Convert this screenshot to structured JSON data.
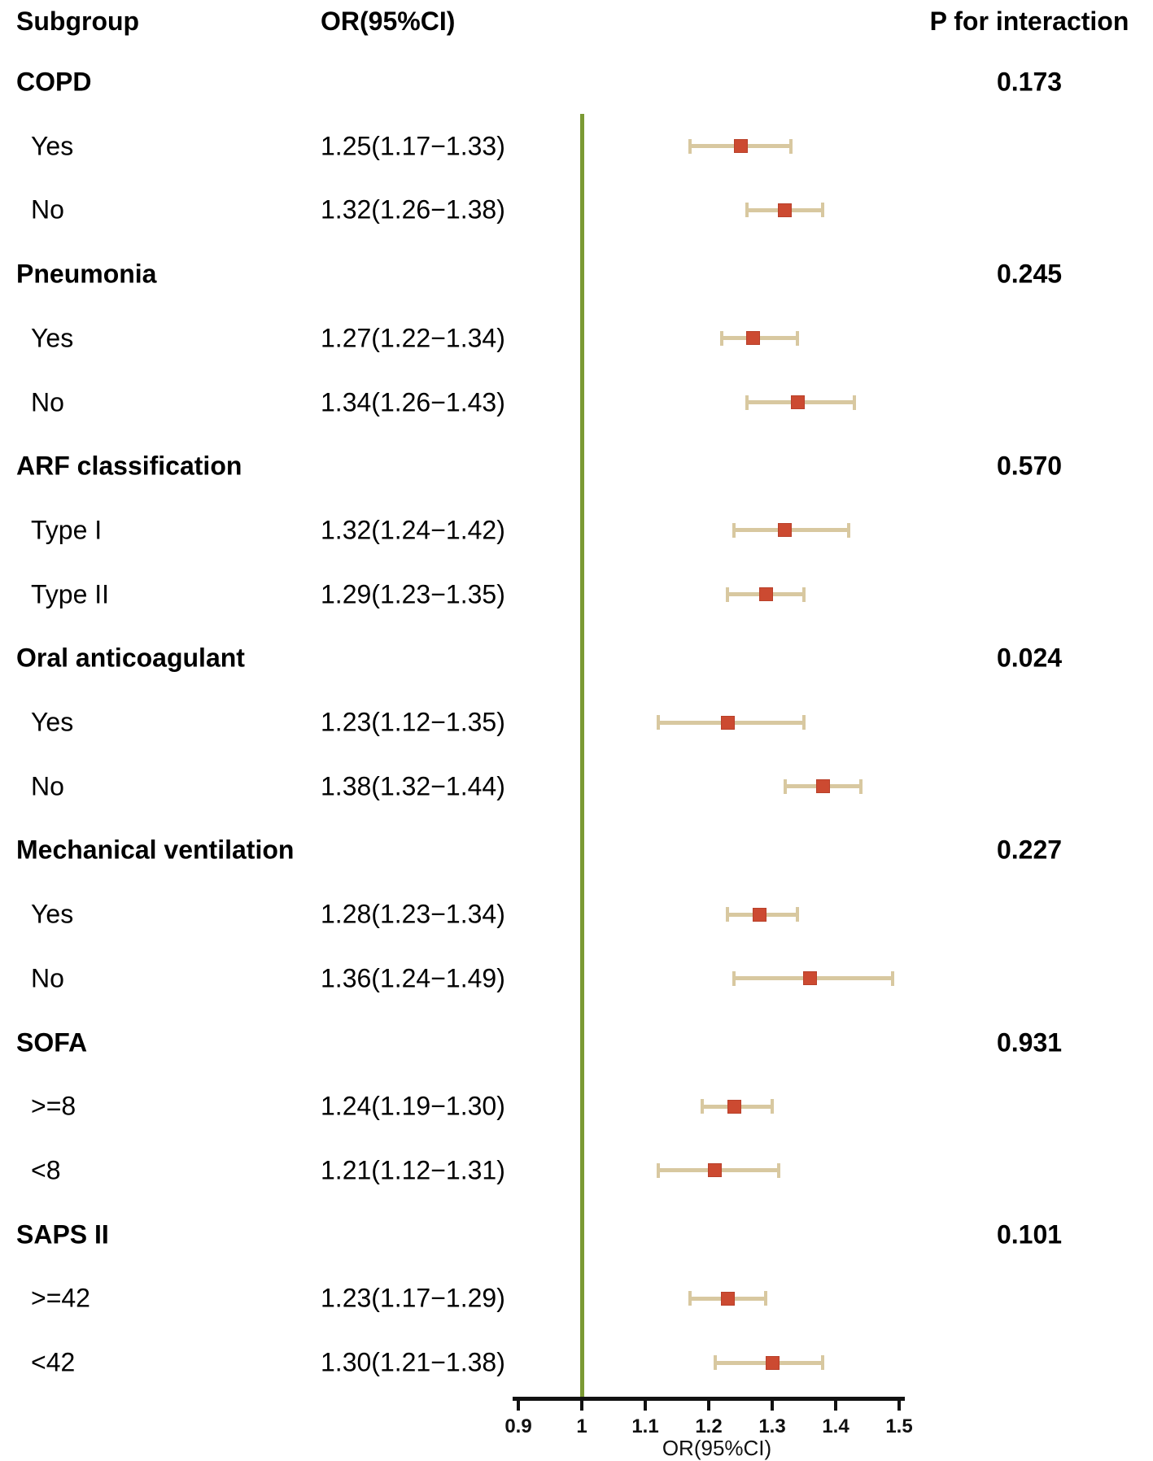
{
  "header": {
    "subgroup": "Subgroup",
    "or_ci": "OR(95%CI)",
    "p_interaction": "P for interaction"
  },
  "axis": {
    "title": "OR(95%CI)",
    "tick_labels": [
      "0.9",
      "1",
      "1.1",
      "1.2",
      "1.3",
      "1.4",
      "1.5"
    ],
    "tick_values": [
      0.9,
      1,
      1.1,
      1.2,
      1.3,
      1.4,
      1.5
    ],
    "min": 0.9,
    "max": 1.5,
    "reference_line": 1
  },
  "colors": {
    "marker": "#cc4a31",
    "marker_border": "#b8402a",
    "ci_bar": "#d8c8a0",
    "reference_line": "#7b9a34",
    "axis": "#111111",
    "text": "#000000"
  },
  "chart_data": {
    "type": "forest",
    "title": "",
    "xlabel": "OR(95%CI)",
    "xlim": [
      0.9,
      1.5
    ],
    "grid": false,
    "reference_value": 1,
    "groups": [
      {
        "label": "COPD",
        "p_interaction": "0.173",
        "items": [
          {
            "label": "Yes",
            "or_text": "1.25(1.17−1.33)",
            "or": 1.25,
            "lo": 1.17,
            "hi": 1.33
          },
          {
            "label": "No",
            "or_text": "1.32(1.26−1.38)",
            "or": 1.32,
            "lo": 1.26,
            "hi": 1.38
          }
        ]
      },
      {
        "label": "Pneumonia",
        "p_interaction": "0.245",
        "items": [
          {
            "label": "Yes",
            "or_text": "1.27(1.22−1.34)",
            "or": 1.27,
            "lo": 1.22,
            "hi": 1.34
          },
          {
            "label": "No",
            "or_text": "1.34(1.26−1.43)",
            "or": 1.34,
            "lo": 1.26,
            "hi": 1.43
          }
        ]
      },
      {
        "label": "ARF classification",
        "p_interaction": "0.570",
        "items": [
          {
            "label": "Type I",
            "or_text": "1.32(1.24−1.42)",
            "or": 1.32,
            "lo": 1.24,
            "hi": 1.42
          },
          {
            "label": "Type II",
            "or_text": "1.29(1.23−1.35)",
            "or": 1.29,
            "lo": 1.23,
            "hi": 1.35
          }
        ]
      },
      {
        "label": "Oral anticoagulant",
        "p_interaction": "0.024",
        "items": [
          {
            "label": "Yes",
            "or_text": "1.23(1.12−1.35)",
            "or": 1.23,
            "lo": 1.12,
            "hi": 1.35
          },
          {
            "label": "No",
            "or_text": "1.38(1.32−1.44)",
            "or": 1.38,
            "lo": 1.32,
            "hi": 1.44
          }
        ]
      },
      {
        "label": "Mechanical ventilation",
        "p_interaction": "0.227",
        "items": [
          {
            "label": "Yes",
            "or_text": "1.28(1.23−1.34)",
            "or": 1.28,
            "lo": 1.23,
            "hi": 1.34
          },
          {
            "label": "No",
            "or_text": "1.36(1.24−1.49)",
            "or": 1.36,
            "lo": 1.24,
            "hi": 1.49
          }
        ]
      },
      {
        "label": "SOFA",
        "p_interaction": "0.931",
        "items": [
          {
            "label": ">=8",
            "or_text": "1.24(1.19−1.30)",
            "or": 1.24,
            "lo": 1.19,
            "hi": 1.3
          },
          {
            "label": "<8",
            "or_text": "1.21(1.12−1.31)",
            "or": 1.21,
            "lo": 1.12,
            "hi": 1.31
          }
        ]
      },
      {
        "label": "SAPS II",
        "p_interaction": "0.101",
        "items": [
          {
            "label": ">=42",
            "or_text": "1.23(1.17−1.29)",
            "or": 1.23,
            "lo": 1.17,
            "hi": 1.29
          },
          {
            "label": "<42",
            "or_text": "1.30(1.21−1.38)",
            "or": 1.3,
            "lo": 1.21,
            "hi": 1.38
          }
        ]
      }
    ]
  }
}
